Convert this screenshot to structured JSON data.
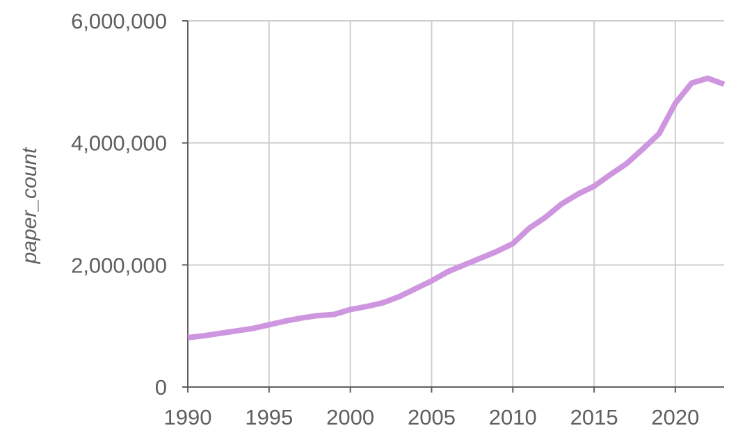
{
  "chart_data": {
    "type": "line",
    "title": "",
    "xlabel": "",
    "ylabel": "paper_count",
    "xlim": [
      1990,
      2023
    ],
    "ylim": [
      0,
      6000000
    ],
    "x_ticks": [
      1990,
      1995,
      2000,
      2005,
      2010,
      2015,
      2020
    ],
    "x_tick_labels": [
      "1990",
      "1995",
      "2000",
      "2005",
      "2010",
      "2015",
      "2020"
    ],
    "y_ticks": [
      0,
      2000000,
      4000000,
      6000000
    ],
    "y_tick_labels": [
      "0",
      "2,000,000",
      "4,000,000",
      "6,000,000"
    ],
    "grid": true,
    "legend": "none",
    "series": [
      {
        "color": "#cf96e0",
        "x": [
          1990,
          1991,
          1992,
          1993,
          1994,
          1995,
          1996,
          1997,
          1998,
          1999,
          2000,
          2001,
          2002,
          2003,
          2004,
          2005,
          2006,
          2007,
          2008,
          2009,
          2010,
          2011,
          2012,
          2013,
          2014,
          2015,
          2016,
          2017,
          2018,
          2019,
          2020,
          2021,
          2022,
          2023
        ],
        "values": [
          810000,
          840000,
          880000,
          920000,
          960000,
          1020000,
          1080000,
          1130000,
          1170000,
          1190000,
          1270000,
          1320000,
          1380000,
          1480000,
          1610000,
          1740000,
          1890000,
          2000000,
          2110000,
          2220000,
          2350000,
          2600000,
          2780000,
          3000000,
          3160000,
          3290000,
          3480000,
          3660000,
          3900000,
          4150000,
          4650000,
          4980000,
          5060000,
          4960000
        ]
      }
    ]
  }
}
